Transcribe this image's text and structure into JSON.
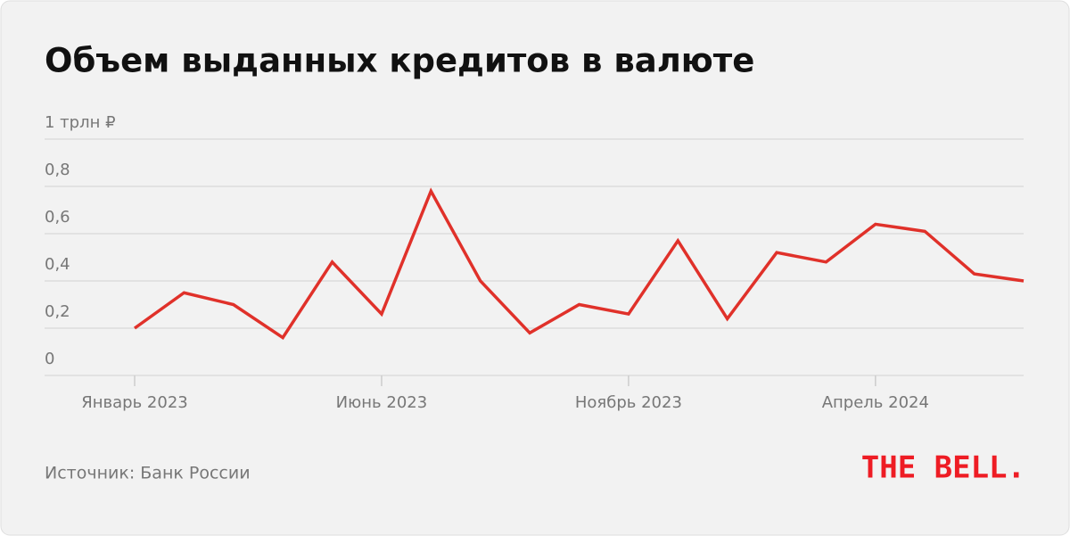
{
  "chart_data": {
    "type": "line",
    "title": "Объем выданных кредитов в валюте",
    "source": "Источник: Банк России",
    "brand": "THE BELL.",
    "categories": [
      "Январь 2023",
      null,
      null,
      null,
      null,
      "Июнь 2023",
      null,
      null,
      null,
      null,
      "Ноябрь 2023",
      null,
      null,
      null,
      null,
      "Апрель 2024",
      null,
      null,
      null
    ],
    "values": [
      0.2,
      0.35,
      0.3,
      0.16,
      0.48,
      0.26,
      0.78,
      0.4,
      0.18,
      0.3,
      0.26,
      0.57,
      0.24,
      0.52,
      0.48,
      0.64,
      0.61,
      0.43,
      0.4
    ],
    "color": "#e0312a",
    "ylim": [
      0,
      1
    ],
    "yticks": [
      0,
      {
        "value": 0.2,
        "label": "0,2"
      },
      {
        "value": 0.4,
        "label": "0,4"
      },
      {
        "value": 0.6,
        "label": "0,6"
      },
      {
        "value": 0.8,
        "label": "0,8"
      },
      {
        "value": 1,
        "label": "1 трлн ₽"
      }
    ],
    "grid": true
  }
}
